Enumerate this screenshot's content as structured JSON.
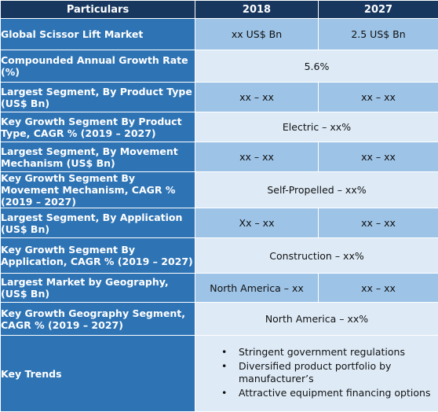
{
  "header": {
    "col1": "Particulars",
    "col2": "2018",
    "col3": "2027"
  },
  "rows": [
    {
      "label": "Global Scissor Lift Market",
      "v2018": "xx US$ Bn",
      "v2027": "2.5 US$ Bn"
    },
    {
      "label": "Compounded Annual Growth Rate (%)",
      "value": "5.6%"
    },
    {
      "label": "Largest Segment, By Product Type (US$ Bn)",
      "v2018": "xx – xx",
      "v2027": "xx – xx"
    },
    {
      "label": "Key Growth Segment By Product Type, CAGR % (2019 – 2027)",
      "value": "Electric – xx%"
    },
    {
      "label": "Largest Segment, By Movement Mechanism (US$ Bn)",
      "v2018": "xx – xx",
      "v2027": "xx – xx"
    },
    {
      "label": "Key Growth Segment By Movement Mechanism, CAGR % (2019 – 2027)",
      "value": "Self-Propelled – xx%"
    },
    {
      "label": "Largest Segment, By Application (US$ Bn)",
      "v2018": "Xx – xx",
      "v2027": "xx – xx"
    },
    {
      "label": "Key Growth Segment By Application, CAGR % (2019 – 2027)",
      "value": "Construction  – xx%"
    },
    {
      "label": "Largest Market by Geography, (US$ Bn)",
      "v2018": "North America – xx",
      "v2027": "xx – xx"
    },
    {
      "label": "Key Growth Geography Segment, CAGR % (2019 – 2027)",
      "value": "North America – xx%"
    },
    {
      "label": "Key Trends",
      "trends": [
        "Stringent government regulations",
        "Diversified product portfolio by manufacturer’s",
        "Attractive equipment financing options"
      ]
    }
  ],
  "colors": {
    "header_bg": "#17375e",
    "label_bg": "#2e74b5",
    "value_bg_medium": "#9dc3e6",
    "value_bg_light": "#deebf7"
  }
}
